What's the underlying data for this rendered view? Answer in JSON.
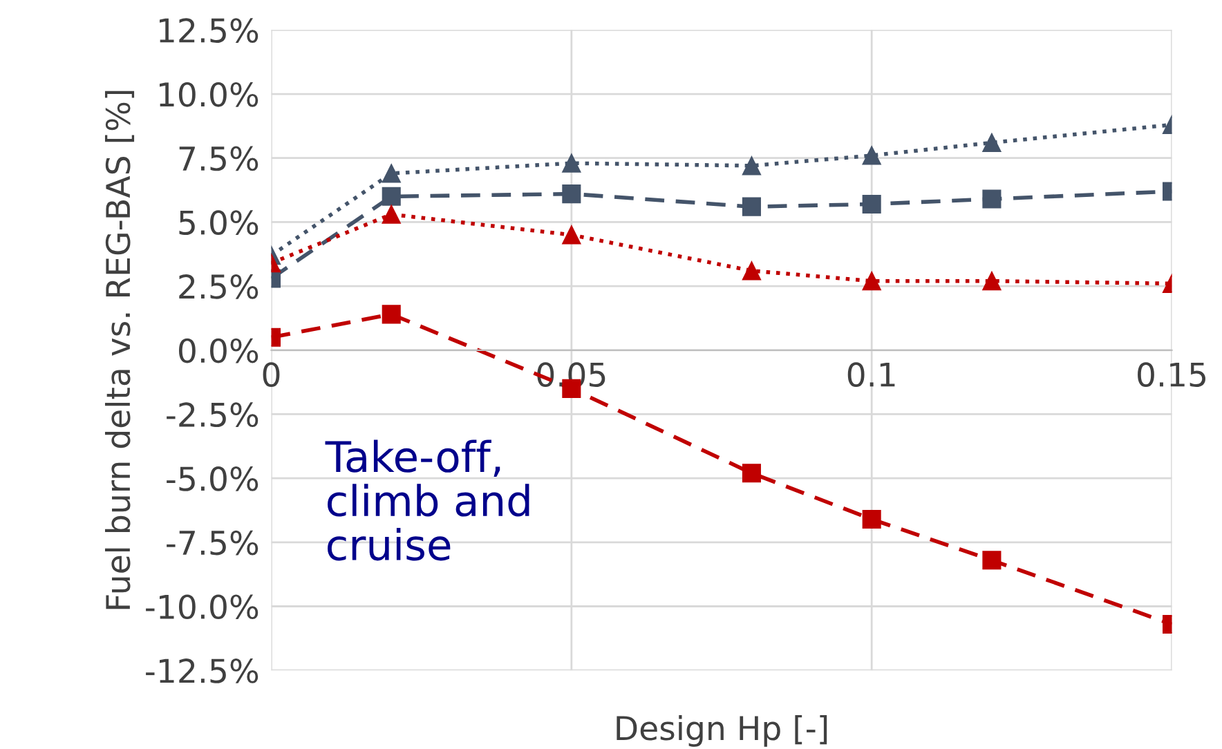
{
  "chart_data": {
    "type": "line",
    "xlabel": "Design Hp [-]",
    "ylabel": "Fuel burn delta vs. REG-BAS [%]",
    "x": [
      0,
      0.02,
      0.05,
      0.08,
      0.1,
      0.12,
      0.15
    ],
    "series": [
      {
        "color": "#44546a",
        "marker": "triangle",
        "line_style": "dotted",
        "values": [
          3.7,
          6.9,
          7.3,
          7.2,
          7.6,
          8.1,
          8.8
        ]
      },
      {
        "color": "#44546a",
        "marker": "square",
        "line_style": "dashed",
        "values": [
          2.8,
          6.0,
          6.1,
          5.6,
          5.7,
          5.9,
          6.2
        ]
      },
      {
        "color": "#c00000",
        "marker": "triangle",
        "line_style": "dotted",
        "values": [
          3.4,
          5.3,
          4.5,
          3.1,
          2.7,
          2.7,
          2.6
        ]
      },
      {
        "color": "#c00000",
        "marker": "square",
        "line_style": "dashed",
        "values": [
          0.5,
          1.4,
          -1.5,
          -4.8,
          -6.6,
          -8.2,
          -10.7
        ]
      }
    ],
    "xlim": [
      0,
      0.15
    ],
    "xticks": [
      0,
      0.05,
      0.1,
      0.15
    ],
    "ylim": [
      -12.5,
      12.5
    ],
    "yticks": [
      {
        "value": -12.5,
        "label": "-12.5%"
      },
      {
        "value": -10,
        "label": "-10.0%"
      },
      {
        "value": -7.5,
        "label": "-7.5%"
      },
      {
        "value": -5,
        "label": "-5.0%"
      },
      {
        "value": -2.5,
        "label": "-2.5%"
      },
      {
        "value": 0,
        "label": "0.0%"
      },
      {
        "value": 2.5,
        "label": "2.5%"
      },
      {
        "value": 5,
        "label": "5.0%"
      },
      {
        "value": 7.5,
        "label": "7.5%"
      },
      {
        "value": 10,
        "label": "10.0%"
      },
      {
        "value": 12.5,
        "label": "12.5%"
      }
    ],
    "grid": true,
    "legend": false,
    "annotations": [
      "Take-off,\nclimb and\ncruise"
    ]
  }
}
